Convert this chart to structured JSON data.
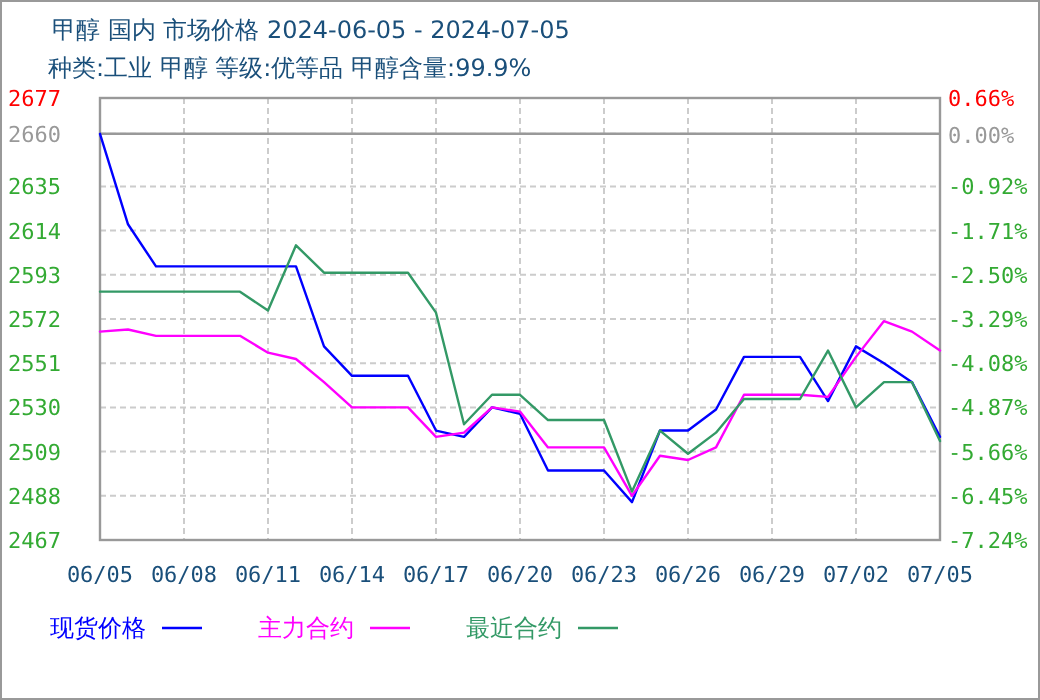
{
  "chart_data": {
    "type": "line",
    "title": "甲醇 国内 市场价格 2024-06-05 - 2024-07-05",
    "subtitle": "种类:工业 甲醇 等级:优等品 甲醇含量:99.9%",
    "x": [
      "2024-06-05",
      "2024-06-06",
      "2024-06-07",
      "2024-06-08",
      "2024-06-09",
      "2024-06-10",
      "2024-06-11",
      "2024-06-12",
      "2024-06-13",
      "2024-06-14",
      "2024-06-15",
      "2024-06-16",
      "2024-06-17",
      "2024-06-18",
      "2024-06-19",
      "2024-06-20",
      "2024-06-21",
      "2024-06-22",
      "2024-06-23",
      "2024-06-24",
      "2024-06-25",
      "2024-06-26",
      "2024-06-27",
      "2024-06-28",
      "2024-06-29",
      "2024-06-30",
      "2024-07-01",
      "2024-07-02",
      "2024-07-03",
      "2024-07-04",
      "2024-07-05"
    ],
    "series": [
      {
        "name": "现货价格",
        "color": "#0000ff",
        "values": [
          2660,
          2617,
          2597,
          2597,
          2597,
          2597,
          2597,
          2597,
          2559,
          2545,
          2545,
          2545,
          2519,
          2516,
          2530,
          2527,
          2500,
          2500,
          2500,
          2485,
          2519,
          2519,
          2529,
          2554,
          2554,
          2554,
          2533,
          2559,
          2551,
          2542,
          2516
        ]
      },
      {
        "name": "主力合约",
        "color": "#ff00ff",
        "values": [
          2566,
          2567,
          2564,
          2564,
          2564,
          2564,
          2556,
          2553,
          2542,
          2530,
          2530,
          2530,
          2516,
          2518,
          2530,
          2528,
          2511,
          2511,
          2511,
          2488,
          2507,
          2505,
          2511,
          2536,
          2536,
          2536,
          2535,
          2554,
          2571,
          2566,
          2557
        ]
      },
      {
        "name": "最近合约",
        "color": "#339966",
        "values": [
          2585,
          2585,
          2585,
          2585,
          2585,
          2585,
          2576,
          2607,
          2594,
          2594,
          2594,
          2594,
          2575,
          2522,
          2536,
          2536,
          2524,
          2524,
          2524,
          2490,
          2519,
          2508,
          2518,
          2534,
          2534,
          2534,
          2557,
          2530,
          2542,
          2542,
          2514
        ]
      }
    ],
    "xlim": [
      "2024-06-05",
      "2024-07-05"
    ],
    "xticks": [
      {
        "value": "2024-06-05",
        "label": "06/05"
      },
      {
        "value": "2024-06-08",
        "label": "06/08"
      },
      {
        "value": "2024-06-11",
        "label": "06/11"
      },
      {
        "value": "2024-06-14",
        "label": "06/14"
      },
      {
        "value": "2024-06-17",
        "label": "06/17"
      },
      {
        "value": "2024-06-20",
        "label": "06/20"
      },
      {
        "value": "2024-06-23",
        "label": "06/23"
      },
      {
        "value": "2024-06-26",
        "label": "06/26"
      },
      {
        "value": "2024-06-29",
        "label": "06/29"
      },
      {
        "value": "2024-07-02",
        "label": "07/02"
      },
      {
        "value": "2024-07-05",
        "label": "07/05"
      }
    ],
    "ylim": [
      2467,
      2677
    ],
    "yticks": [
      2467,
      2488,
      2509,
      2530,
      2551,
      2572,
      2593,
      2614,
      2635,
      2660,
      2677
    ],
    "y2lim": [
      -7.24,
      0.66
    ],
    "y2ticks": [
      {
        "value": -7.24,
        "label": "-7.24%"
      },
      {
        "value": -6.45,
        "label": "-6.45%"
      },
      {
        "value": -5.66,
        "label": "-5.66%"
      },
      {
        "value": -4.87,
        "label": "-4.87%"
      },
      {
        "value": -4.08,
        "label": "-4.08%"
      },
      {
        "value": -3.29,
        "label": "-3.29%"
      },
      {
        "value": -2.5,
        "label": "-2.50%"
      },
      {
        "value": -1.71,
        "label": "-1.71%"
      },
      {
        "value": -0.92,
        "label": "-0.92%"
      },
      {
        "value": 0,
        "label": "0.00%"
      },
      {
        "value": 0.66,
        "label": "0.66%"
      }
    ],
    "ref_lines": [
      {
        "axis": "y",
        "value": 2660,
        "color": "#999999"
      }
    ],
    "grid": true,
    "legend": "bottom",
    "line_style": "solid",
    "marker": "none"
  }
}
